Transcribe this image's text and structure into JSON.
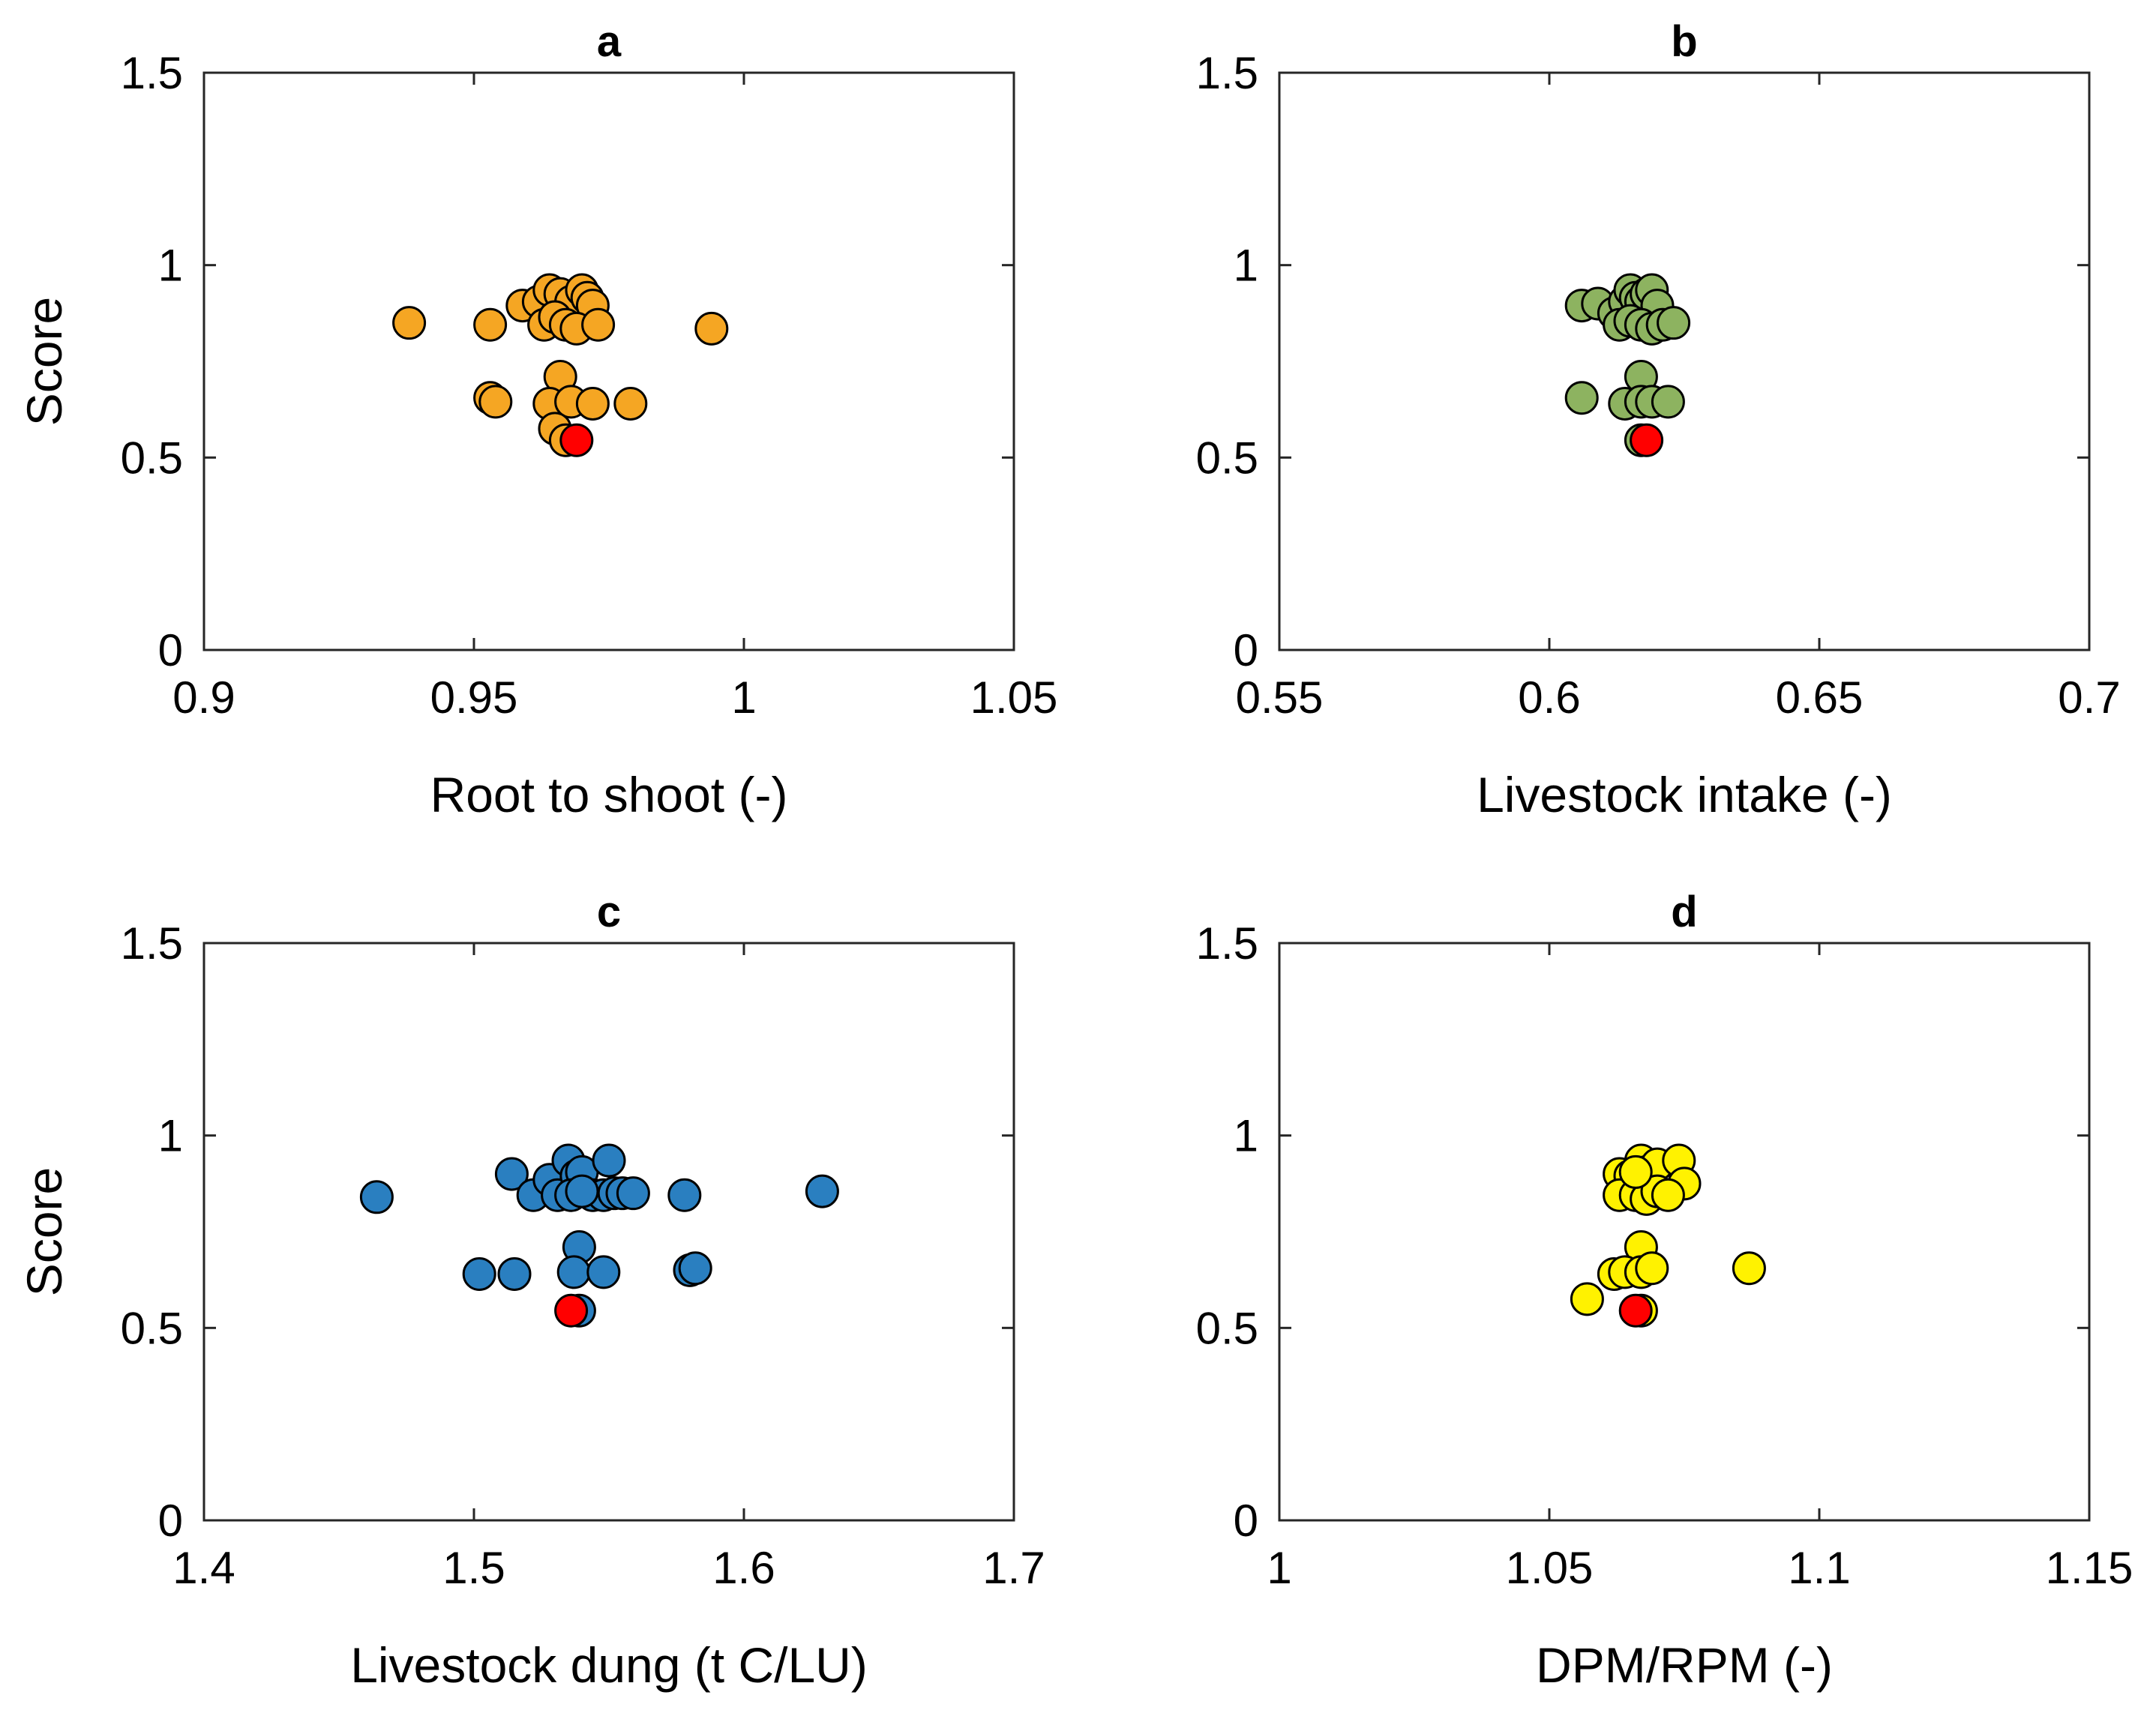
{
  "chart_data": [
    {
      "type": "scatter",
      "panel": "a",
      "title": "a",
      "xlabel": "Root to shoot (-)",
      "ylabel": "Score",
      "xlim": [
        0.9,
        1.05
      ],
      "ylim": [
        0,
        1.5
      ],
      "xticks": [
        0.9,
        0.95,
        1,
        1.05
      ],
      "xtick_labels": [
        "0.9",
        "0.95",
        "1",
        "1.05"
      ],
      "yticks": [
        0,
        0.5,
        1,
        1.5
      ],
      "ytick_labels": [
        "0",
        "0.5",
        "1",
        "1.5"
      ],
      "color": "#F5A623",
      "highlight_color": "#FF0000",
      "points": {
        "x": [
          0.938,
          0.953,
          0.959,
          0.962,
          0.964,
          0.966,
          0.968,
          0.97,
          0.971,
          0.972,
          0.963,
          0.965,
          0.967,
          0.969,
          0.973,
          0.994,
          0.966,
          0.953,
          0.954,
          0.964,
          0.968,
          0.972,
          0.979,
          0.965,
          0.967
        ],
        "y": [
          0.85,
          0.845,
          0.895,
          0.905,
          0.935,
          0.925,
          0.905,
          0.935,
          0.915,
          0.895,
          0.845,
          0.865,
          0.845,
          0.835,
          0.845,
          0.835,
          0.71,
          0.655,
          0.645,
          0.64,
          0.645,
          0.64,
          0.64,
          0.575,
          0.545
        ]
      },
      "highlight": {
        "x": 0.969,
        "y": 0.545
      }
    },
    {
      "type": "scatter",
      "panel": "b",
      "title": "b",
      "xlabel": "Livestock intake (-)",
      "ylabel": "",
      "xlim": [
        0.55,
        0.7
      ],
      "ylim": [
        0,
        1.5
      ],
      "xticks": [
        0.55,
        0.6,
        0.65,
        0.7
      ],
      "xtick_labels": [
        "0.55",
        "0.6",
        "0.65",
        "0.7"
      ],
      "yticks": [
        0,
        0.5,
        1,
        1.5
      ],
      "ytick_labels": [
        "0",
        "0.5",
        "1",
        "1.5"
      ],
      "color": "#8DB360",
      "highlight_color": "#FF0000",
      "points": {
        "x": [
          0.606,
          0.609,
          0.612,
          0.614,
          0.615,
          0.616,
          0.617,
          0.618,
          0.619,
          0.62,
          0.613,
          0.615,
          0.617,
          0.619,
          0.621,
          0.623,
          0.617,
          0.606,
          0.614,
          0.617,
          0.619,
          0.622,
          0.617
        ],
        "y": [
          0.895,
          0.9,
          0.875,
          0.905,
          0.935,
          0.915,
          0.905,
          0.925,
          0.935,
          0.895,
          0.845,
          0.855,
          0.845,
          0.835,
          0.845,
          0.85,
          0.71,
          0.655,
          0.64,
          0.645,
          0.645,
          0.645,
          0.545
        ]
      },
      "highlight": {
        "x": 0.618,
        "y": 0.545
      }
    },
    {
      "type": "scatter",
      "panel": "c",
      "title": "c",
      "xlabel": "Livestock dung (t C/LU)",
      "ylabel": "Score",
      "xlim": [
        1.4,
        1.7
      ],
      "ylim": [
        0,
        1.5
      ],
      "xticks": [
        1.4,
        1.5,
        1.6,
        1.7
      ],
      "xtick_labels": [
        "1.4",
        "1.5",
        "1.6",
        "1.7"
      ],
      "yticks": [
        0,
        0.5,
        1,
        1.5
      ],
      "ytick_labels": [
        "0",
        "0.5",
        "1",
        "1.5"
      ],
      "color": "#2A7FC0",
      "highlight_color": "#FF0000",
      "points": {
        "x": [
          1.464,
          1.514,
          1.522,
          1.528,
          1.531,
          1.535,
          1.538,
          1.54,
          1.544,
          1.548,
          1.552,
          1.555,
          1.559,
          1.55,
          1.578,
          1.629,
          1.539,
          1.502,
          1.515,
          1.537,
          1.548,
          1.58,
          1.582,
          1.539,
          1.536,
          1.54
        ],
        "y": [
          0.84,
          0.9,
          0.845,
          0.885,
          0.845,
          0.935,
          0.895,
          0.905,
          0.845,
          0.845,
          0.85,
          0.85,
          0.85,
          0.935,
          0.845,
          0.855,
          0.71,
          0.64,
          0.64,
          0.645,
          0.645,
          0.65,
          0.655,
          0.545,
          0.845,
          0.855
        ]
      },
      "highlight": {
        "x": 1.536,
        "y": 0.545
      }
    },
    {
      "type": "scatter",
      "panel": "d",
      "title": "d",
      "xlabel": "DPM/RPM (-)",
      "ylabel": "",
      "xlim": [
        1,
        1.15
      ],
      "ylim": [
        0,
        1.5
      ],
      "xticks": [
        1,
        1.05,
        1.1,
        1.15
      ],
      "xtick_labels": [
        "1",
        "1.05",
        "1.1",
        "1.15"
      ],
      "yticks": [
        0,
        0.5,
        1,
        1.5
      ],
      "ytick_labels": [
        "0",
        "0.5",
        "1",
        "1.5"
      ],
      "color": "#FFF200",
      "highlight_color": "#FF0000",
      "points": {
        "x": [
          1.063,
          1.065,
          1.067,
          1.068,
          1.07,
          1.074,
          1.075,
          1.063,
          1.066,
          1.068,
          1.07,
          1.072,
          1.067,
          1.057,
          1.062,
          1.064,
          1.067,
          1.069,
          1.087,
          1.067,
          1.066
        ],
        "y": [
          0.9,
          0.895,
          0.935,
          0.905,
          0.925,
          0.935,
          0.875,
          0.845,
          0.845,
          0.835,
          0.855,
          0.845,
          0.71,
          0.575,
          0.64,
          0.645,
          0.645,
          0.655,
          0.655,
          0.545,
          0.905
        ]
      },
      "highlight": {
        "x": 1.066,
        "y": 0.545
      }
    }
  ]
}
